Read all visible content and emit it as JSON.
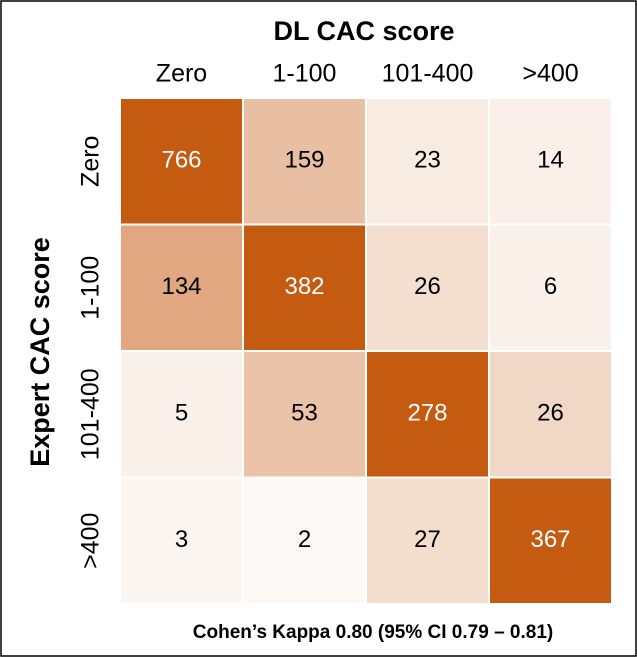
{
  "chart_data": {
    "type": "heatmap",
    "title": "DL CAC score",
    "y_label": "Expert CAC score",
    "x_categories": [
      "Zero",
      "1-100",
      "101-400",
      ">400"
    ],
    "y_categories": [
      "Zero",
      "1-100",
      "101-400",
      ">400"
    ],
    "values": [
      [
        766,
        159,
        23,
        14
      ],
      [
        134,
        382,
        26,
        6
      ],
      [
        5,
        53,
        278,
        26
      ],
      [
        3,
        2,
        27,
        367
      ]
    ],
    "color": "#c55a11",
    "annotation": "Cohen’s Kappa 0.80 (95% CI 0.79 – 0.81)"
  }
}
